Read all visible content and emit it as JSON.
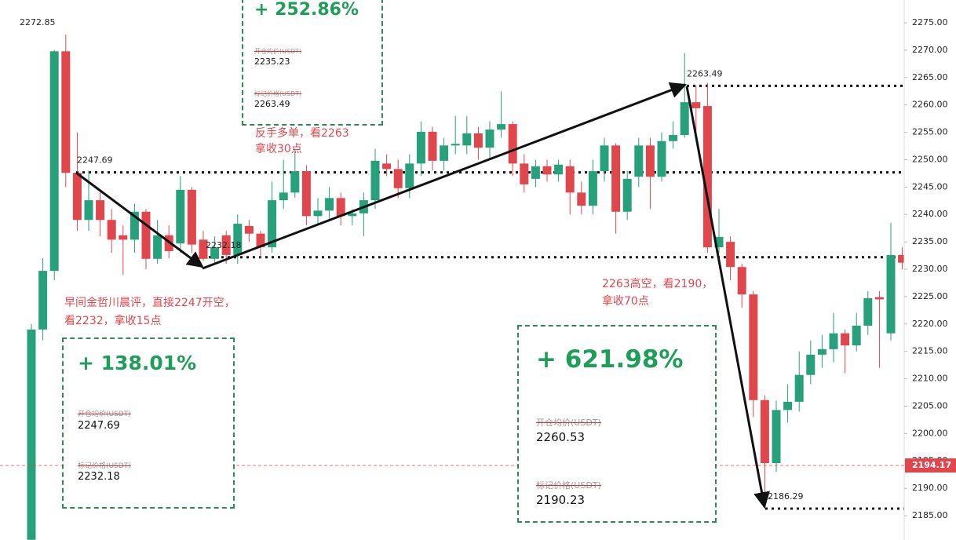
{
  "chart_data": {
    "type": "candlestick",
    "up_color": "#26a17b",
    "down_color": "#e0474c",
    "ylim": [
      2180.56,
      2279.16
    ],
    "yticks": [
      {
        "value": 2185,
        "label": "2185.00"
      },
      {
        "value": 2190,
        "label": "2190.00"
      },
      {
        "value": 2195,
        "label": "2195.00"
      },
      {
        "value": 2200,
        "label": "2200.00"
      },
      {
        "value": 2205,
        "label": "2205.00"
      },
      {
        "value": 2210,
        "label": "2210.00"
      },
      {
        "value": 2215,
        "label": "2215.00"
      },
      {
        "value": 2220,
        "label": "2220.00"
      },
      {
        "value": 2225,
        "label": "2225.00"
      },
      {
        "value": 2230,
        "label": "2230.00"
      },
      {
        "value": 2235,
        "label": "2235.00"
      },
      {
        "value": 2240,
        "label": "2240.00"
      },
      {
        "value": 2245,
        "label": "2245.00"
      },
      {
        "value": 2250,
        "label": "2250.00"
      },
      {
        "value": 2255,
        "label": "2255.00"
      },
      {
        "value": 2260,
        "label": "2260.00"
      },
      {
        "value": 2265,
        "label": "2265.00"
      },
      {
        "value": 2270,
        "label": "2270.00"
      },
      {
        "value": 2275,
        "label": "2275.00"
      }
    ],
    "open": [
      2180.6,
      2219.0,
      2229.7,
      2269.8,
      2247.6,
      2239.0,
      2242.6,
      2239.0,
      2236.2,
      2235.4,
      2240.5,
      2231.9,
      2236.2,
      2234.7,
      2244.5,
      2235.4,
      2231.9,
      2236.2,
      2232.6,
      2237.9,
      2236.5,
      2234.0,
      2242.6,
      2244.0,
      2247.9,
      2239.7,
      2240.7,
      2243.0,
      2239.7,
      2240.2,
      2242.6,
      2249.3,
      2248.3,
      2244.8,
      2249.3,
      2255.1,
      2249.8,
      2252.6,
      2252.6,
      2254.8,
      2252.2,
      2255.5,
      2256.5,
      2249.3,
      2246.5,
      2248.8,
      2247.3,
      2248.8,
      2244.0,
      2241.6,
      2247.9,
      2252.6,
      2240.5,
      2246.9,
      2252.6,
      2246.9,
      2253.4,
      2254.5,
      2260.5,
      2259.8,
      2234.0,
      2235.0,
      2230.4,
      2225.4,
      2206.1,
      2194.6,
      2204.3,
      2205.8,
      2210.7,
      2214.4,
      2215.4,
      2218.3,
      2216.1,
      2219.7,
      2224.9,
      2218.3,
      2232.6
    ],
    "high": [
      2220.0,
      2232.0,
      2270.0,
      2272.85,
      2255.0,
      2248.0,
      2244.0,
      2241.0,
      2238.0,
      2242.0,
      2241.0,
      2239.0,
      2238.0,
      2247.0,
      2245.0,
      2237.0,
      2236.0,
      2237.0,
      2240.0,
      2239.0,
      2237.0,
      2246.0,
      2250.0,
      2252.0,
      2249.0,
      2243.0,
      2245.0,
      2244.0,
      2241.0,
      2244.0,
      2252.0,
      2251.0,
      2250.0,
      2251.0,
      2257.0,
      2256.0,
      2254.0,
      2258.0,
      2258.0,
      2256.0,
      2257.0,
      2262.5,
      2257.0,
      2251.0,
      2250.0,
      2250.0,
      2250.0,
      2250.0,
      2246.0,
      2250.0,
      2254.0,
      2253.0,
      2248.0,
      2254.0,
      2254.0,
      2255.0,
      2257.0,
      2269.5,
      2263.5,
      2264.0,
      2241.0,
      2236.0,
      2231.0,
      2226.0,
      2207.0,
      2206.0,
      2209.0,
      2215.0,
      2217.0,
      2218.0,
      2222.0,
      2219.0,
      2222.0,
      2226.0,
      2226.0,
      2238.5,
      2234.0
    ],
    "low": [
      2180.0,
      2217.0,
      2228.0,
      2245.0,
      2237.0,
      2237.0,
      2236.0,
      2233.0,
      2229.0,
      2233.0,
      2230.0,
      2231.0,
      2232.0,
      2233.0,
      2233.0,
      2231.5,
      2231.0,
      2231.0,
      2231.0,
      2235.0,
      2232.0,
      2233.0,
      2241.0,
      2243.0,
      2238.0,
      2238.0,
      2239.0,
      2238.0,
      2238.0,
      2236.0,
      2241.0,
      2247.0,
      2243.0,
      2243.0,
      2247.0,
      2248.0,
      2248.0,
      2251.0,
      2251.0,
      2250.0,
      2250.0,
      2254.0,
      2247.0,
      2244.0,
      2245.0,
      2246.0,
      2246.0,
      2240.0,
      2240.0,
      2240.0,
      2246.0,
      2236.5,
      2239.0,
      2245.0,
      2241.0,
      2246.0,
      2252.0,
      2254.0,
      2255.0,
      2233.0,
      2233.0,
      2228.0,
      2223.0,
      2203.0,
      2186.29,
      2193.0,
      2202.0,
      2204.0,
      2209.0,
      2212.0,
      2213.0,
      2211.0,
      2215.0,
      2218.0,
      2212.0,
      2217.0,
      2230.0
    ],
    "close": [
      2219.0,
      2229.7,
      2269.8,
      2247.6,
      2239.0,
      2242.6,
      2239.0,
      2235.4,
      2235.4,
      2240.5,
      2231.9,
      2236.2,
      2233.3,
      2244.5,
      2234.5,
      2231.9,
      2234.0,
      2232.6,
      2238.3,
      2236.5,
      2234.0,
      2242.6,
      2244.0,
      2247.9,
      2239.7,
      2240.7,
      2243.0,
      2239.7,
      2240.2,
      2242.6,
      2249.8,
      2248.3,
      2244.8,
      2249.3,
      2255.1,
      2249.8,
      2252.6,
      2252.9,
      2254.8,
      2252.2,
      2255.5,
      2256.5,
      2249.3,
      2245.5,
      2248.8,
      2247.3,
      2249.1,
      2244.0,
      2241.6,
      2247.9,
      2252.6,
      2240.5,
      2246.5,
      2252.6,
      2246.9,
      2253.4,
      2254.5,
      2260.5,
      2259.4,
      2234.0,
      2235.9,
      2230.4,
      2225.4,
      2206.1,
      2194.6,
      2204.3,
      2205.8,
      2210.7,
      2214.4,
      2215.4,
      2218.3,
      2216.1,
      2219.7,
      2224.7,
      2224.5,
      2232.6,
      2231.2
    ],
    "reference_lines": [
      2263.49,
      2247.69,
      2232.18,
      2186.29
    ],
    "current_price": 2194.17,
    "price_labels": [
      2272.85,
      2247.69,
      2232.18,
      2263.49,
      2186.29
    ],
    "annotations": [
      [
        "反手多单，看2263",
        "拿收30点"
      ],
      [
        "早间金哲川晨评，直接2247开空，",
        "看2232，拿收15点"
      ],
      [
        "2263高空，看2190，",
        "拿收70点"
      ]
    ]
  },
  "cards": [
    {
      "pnl": "+ 252.86%",
      "entry_label": "开仓均价(USDT)",
      "entry": "2235.23",
      "mark_label": "标记价格(USDT)",
      "mark": "2263.49"
    },
    {
      "pnl": "+ 138.01%",
      "entry_label": "开仓均价(USDT)",
      "entry": "2247.69",
      "mark_label": "标记价格(USDT)",
      "mark": "2232.18"
    },
    {
      "pnl": "+ 621.98%",
      "entry_label": "开仓均价(USDT)",
      "entry": "2260.53",
      "mark_label": "标记价格(USDT)",
      "mark": "2190.23"
    }
  ]
}
